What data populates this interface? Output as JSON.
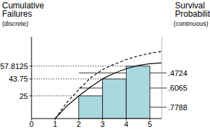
{
  "chart_data": {
    "type": "bar",
    "ylabel": "Cumulative Failures",
    "y2label": "Survival Probability",
    "annotations": [
      "(discrete)",
      "(continuous)"
    ],
    "xlim": [
      0,
      5.5
    ],
    "xticks": [
      0,
      1,
      2,
      3,
      4,
      5
    ],
    "ylim": [
      0,
      90
    ],
    "yticks": [
      25,
      43.75,
      57.8125
    ],
    "y2lim": [
      0.88,
      0.15
    ],
    "y2ticks": [
      {
        "value": 0.7788,
        "label": ".7788"
      },
      {
        "value": 0.6065,
        "label": ".6065"
      },
      {
        "value": 0.4724,
        "label": ".4724"
      }
    ],
    "grid": true,
    "series": [
      {
        "type": "bar",
        "color": "#a9d9de",
        "bins": [
          2,
          3,
          4,
          5
        ],
        "values": [
          25,
          43.75,
          57.8125
        ]
      },
      {
        "type": "line",
        "color": "#000000",
        "line_style": "solid",
        "x": [
          1,
          1.5,
          2,
          2.5,
          3,
          3.5,
          4,
          4.5,
          5,
          5.5
        ],
        "values": [
          0,
          14,
          25,
          35,
          43.75,
          50,
          55,
          58.5,
          60.5,
          61.5
        ]
      },
      {
        "type": "line",
        "color": "#000000",
        "line_style": "dashed",
        "x": [
          1,
          1.5,
          2,
          2.5,
          3,
          3.5,
          4,
          4.5,
          5,
          5.5
        ],
        "values": [
          0,
          18,
          32,
          45,
          54,
          60,
          65,
          69,
          72,
          74
        ]
      }
    ]
  }
}
